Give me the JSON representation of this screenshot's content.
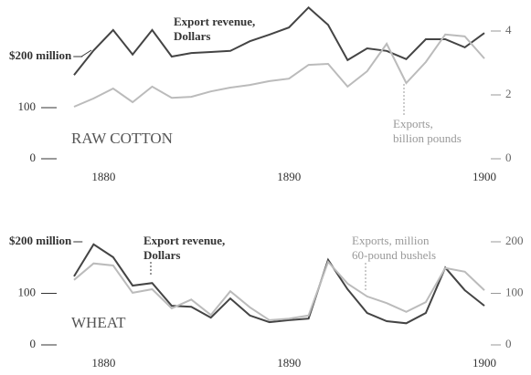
{
  "chart_data": [
    {
      "type": "line",
      "title": "RAW COTTON",
      "annotations": [
        [
          "Export revenue,",
          "Dollars"
        ],
        [
          "Exports,",
          "billion pounds"
        ]
      ],
      "x": [
        1879,
        1880,
        1881,
        1882,
        1883,
        1884,
        1885,
        1886,
        1887,
        1888,
        1889,
        1890,
        1891,
        1892,
        1893,
        1894,
        1895,
        1896,
        1897,
        1898,
        1899,
        1900
      ],
      "xlim": [
        1879,
        1900
      ],
      "xticks": [
        1880,
        1890,
        1900
      ],
      "ylim": [
        0,
        250
      ],
      "yticks": [
        0,
        100,
        {
          "value": 200,
          "label": "$200 million"
        }
      ],
      "y2lim": [
        0,
        4
      ],
      "y2ticks": [
        0,
        2,
        4
      ],
      "series": [
        {
          "name": "Export revenue, Dollars",
          "color": "#444444",
          "values": [
            164,
            212,
            252,
            204,
            252,
            200,
            207,
            209,
            211,
            230,
            243,
            257,
            296,
            262,
            193,
            216,
            211,
            195,
            234,
            234,
            218,
            246
          ]
        },
        {
          "name": "Exports, billion pounds",
          "color": "#bbbbbb",
          "axis": "y2",
          "values": [
            1.63,
            1.89,
            2.2,
            1.77,
            2.26,
            1.91,
            1.94,
            2.11,
            2.23,
            2.31,
            2.43,
            2.51,
            2.94,
            2.97,
            2.26,
            2.74,
            3.6,
            2.37,
            3.03,
            3.89,
            3.83,
            3.14
          ]
        }
      ]
    },
    {
      "type": "line",
      "title": "WHEAT",
      "annotations": [
        [
          "Export revenue,",
          "Dollars"
        ],
        [
          "Exports, million",
          "60-pound bushels"
        ]
      ],
      "x": [
        1879,
        1880,
        1881,
        1882,
        1883,
        1884,
        1885,
        1886,
        1887,
        1888,
        1889,
        1890,
        1891,
        1892,
        1893,
        1894,
        1895,
        1896,
        1897,
        1898,
        1899,
        1900
      ],
      "xlim": [
        1879,
        1900
      ],
      "xticks": [
        1880,
        1890,
        1900
      ],
      "ylim": [
        0,
        200
      ],
      "yticks": [
        0,
        100,
        {
          "value": 200,
          "label": "$200 million"
        }
      ],
      "y2lim": [
        0,
        200
      ],
      "y2ticks": [
        0,
        100,
        200
      ],
      "series": [
        {
          "name": "Export revenue, Dollars",
          "color": "#444444",
          "values": [
            133,
            195,
            170,
            115,
            120,
            76,
            74,
            53,
            90,
            57,
            44,
            48,
            51,
            165,
            108,
            62,
            46,
            42,
            62,
            150,
            106,
            76
          ]
        },
        {
          "name": "Exports, million 60-pound bushels",
          "color": "#bbbbbb",
          "axis": "y2",
          "values": [
            126,
            158,
            154,
            101,
            108,
            71,
            88,
            58,
            104,
            73,
            48,
            51,
            57,
            161,
            119,
            94,
            81,
            64,
            83,
            149,
            142,
            106
          ]
        }
      ]
    }
  ]
}
